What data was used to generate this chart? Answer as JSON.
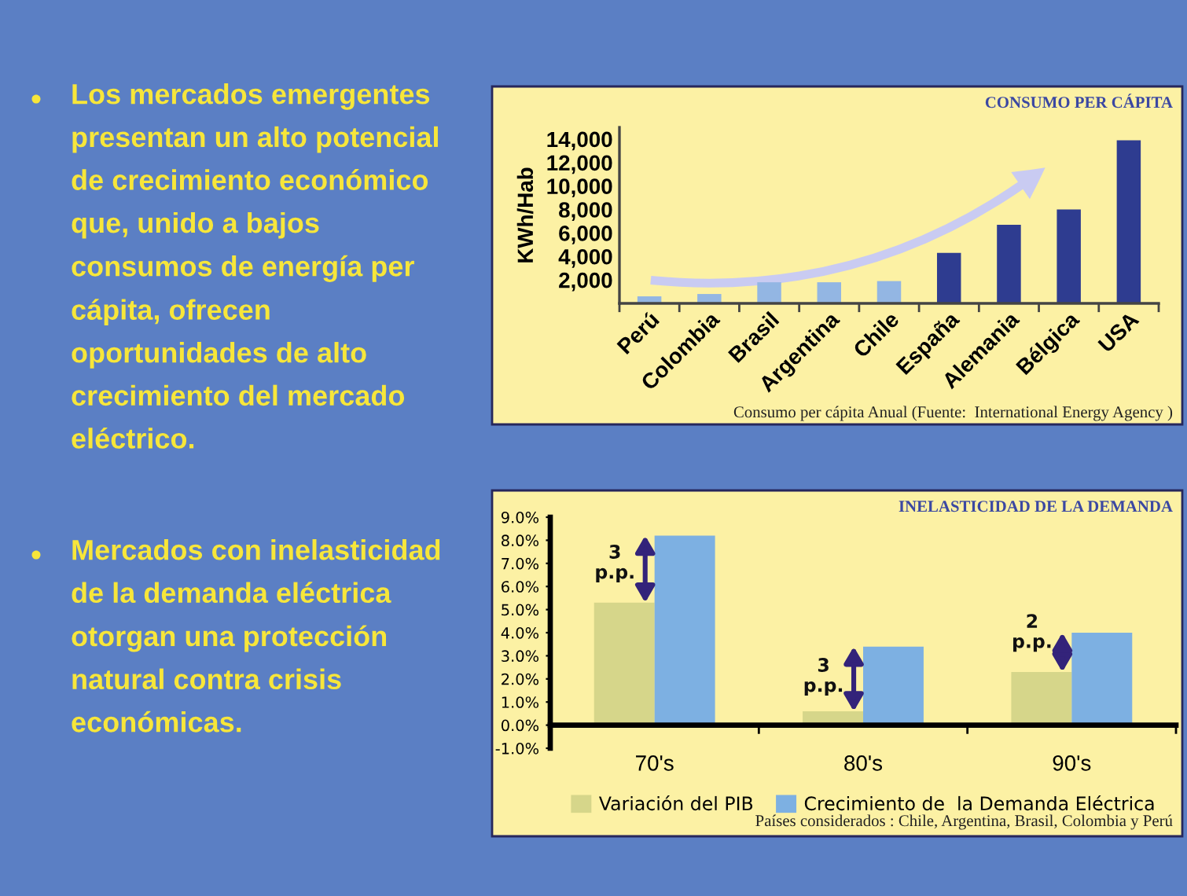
{
  "chart_data": [
    {
      "type": "other",
      "annotations": [
        "Los mercados emergentes\npresentan un alto potencial\nde crecimiento económico\nque, unido a bajos\nconsumos de energía per\ncápita, ofrecen\noportunidades de alto\ncrecimiento del mercado\neléctrico."
      ]
    },
    {
      "type": "bar",
      "title": "CONSUMO PER CÁPITA",
      "ylabel": "KWh/Hab",
      "categories": [
        "Perú",
        "Colombia",
        "Brasil",
        "Argentina",
        "Chile",
        "España",
        "Alemania",
        "Bélgica",
        "USA"
      ],
      "values": [
        600,
        800,
        1800,
        1800,
        1900,
        4300,
        6700,
        8000,
        13900
      ],
      "colors": [
        "#93b6e3",
        "#93b6e3",
        "#93b6e3",
        "#93b6e3",
        "#93b6e3",
        "#2e3c90",
        "#2e3c90",
        "#2e3c90",
        "#2e3c90"
      ],
      "ylim": [
        0,
        15000
      ],
      "yticks": [
        {
          "value": 2000,
          "label": "2,000"
        },
        {
          "value": 4000,
          "label": "4,000"
        },
        {
          "value": 6000,
          "label": "6,000"
        },
        {
          "value": 8000,
          "label": "8,000"
        },
        {
          "value": 10000,
          "label": "10,000"
        },
        {
          "value": 12000,
          "label": "12,000"
        },
        {
          "value": 14000,
          "label": "14,000"
        }
      ],
      "annotations": [
        "Consumo per cápita Anual (Fuente:  International Energy Agency )"
      ]
    },
    {
      "type": "other",
      "annotations": [
        "Mercados con inelasticidad\nde la demanda eléctrica\notorgan una protección\nnatural contra crisis\neconómicas."
      ]
    },
    {
      "type": "bar",
      "title": "INELASTICIDAD DE LA DEMANDA",
      "categories": [
        "70's",
        "80's",
        "90's"
      ],
      "series": [
        {
          "name": "Variación del PIB",
          "color": "#d6d68a",
          "values": [
            5.3,
            0.6,
            2.3
          ]
        },
        {
          "name": "Crecimiento de  la Demanda Eléctrica",
          "color": "#7db0e2",
          "values": [
            8.2,
            3.4,
            4.0
          ]
        }
      ],
      "ylim": [
        -1,
        9
      ],
      "yticks": [
        {
          "value": -1,
          "label": "-1.0%"
        },
        {
          "value": 0,
          "label": "0.0%"
        },
        {
          "value": 1,
          "label": "1.0%"
        },
        {
          "value": 2,
          "label": "2.0%"
        },
        {
          "value": 3,
          "label": "3.0%"
        },
        {
          "value": 4,
          "label": "4.0%"
        },
        {
          "value": 5,
          "label": "5.0%"
        },
        {
          "value": 6,
          "label": "6.0%"
        },
        {
          "value": 7,
          "label": "7.0%"
        },
        {
          "value": 8,
          "label": "8.0%"
        },
        {
          "value": 9,
          "label": "9.0%"
        }
      ],
      "legend": "bottom",
      "annotations": [
        {
          "text": "3\np.p.",
          "x": "70's",
          "y": 7.0
        },
        {
          "text": "3\np.p.",
          "x": "80's",
          "y": 2.1
        },
        {
          "text": "2\np.p.",
          "x": "90's",
          "y": 4.0
        },
        "Países considerados : Chile, Argentina, Brasil, Colombia y Perú"
      ]
    }
  ]
}
